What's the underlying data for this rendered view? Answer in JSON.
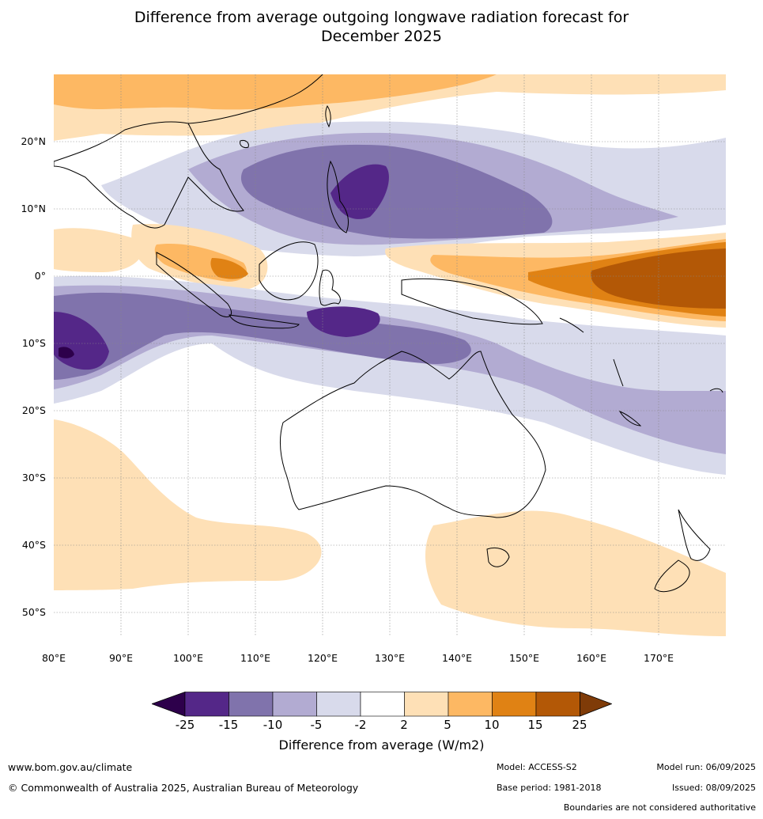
{
  "title_line1": "Difference from average outgoing longwave radiation forecast for",
  "title_line2": "December 2025",
  "latitudes": [
    "20°N",
    "10°N",
    "0°",
    "10°S",
    "20°S",
    "30°S",
    "40°S",
    "50°S"
  ],
  "longitudes": [
    "80°E",
    "90°E",
    "100°E",
    "110°E",
    "120°E",
    "130°E",
    "140°E",
    "150°E",
    "160°E",
    "170°E"
  ],
  "colorbar": {
    "ticks": [
      "-25",
      "-15",
      "-10",
      "-5",
      "-2",
      "2",
      "5",
      "10",
      "15",
      "25"
    ],
    "label": "Difference from average (W/m2)",
    "colors": [
      "#2d004b",
      "#542788",
      "#8073ac",
      "#b2abd2",
      "#d8daeb",
      "#ffffff",
      "#fee0b6",
      "#fdb863",
      "#e08214",
      "#b35806",
      "#7f3b08"
    ]
  },
  "footer": {
    "website": "www.bom.gov.au/climate",
    "copyright": "© Commonwealth of Australia 2025, Australian Bureau of Meteorology",
    "model": "Model: ACCESS-S2",
    "base_period": "Base period: 1981-2018",
    "model_run": "Model run: 06/09/2025",
    "issued": "Issued: 08/09/2025",
    "disclaimer": "Boundaries are not considered authoritative"
  }
}
